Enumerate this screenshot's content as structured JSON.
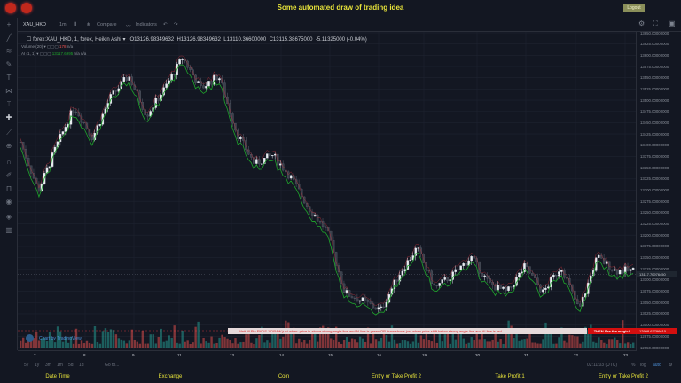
{
  "header": {
    "title": "Some automated draw of trading idea",
    "logout_label": "Logout",
    "alert_icons": [
      "alarm-icon",
      "alarm-icon"
    ]
  },
  "toolbar": {
    "symbol": "XAU_HKD",
    "interval": "1m",
    "compare": "Compare",
    "indicators": "Indicators"
  },
  "legend": {
    "main": "forex:XAU_HKD, 1, forex, Heikin Ashi",
    "open": "O13126.98349632",
    "high": "H13126.98349632",
    "low": "L13110.36600000",
    "close": "C13115.38675000",
    "change": "-5.11325000 (-0.04%)",
    "volume": "Volume (20)",
    "volume_val": "178",
    "volume_na": "n/a",
    "ai": "AI (1, 1)",
    "ai_val": "13117.6995",
    "ai_na1": "n/a",
    "ai_na2": "n/a"
  },
  "chart_data": {
    "type": "candlestick",
    "symbol": "XAU_HKD",
    "style": "Heikin Ashi",
    "y_ticks": [
      13650,
      13625,
      13600,
      13575,
      13550,
      13525,
      13500,
      13475,
      13450,
      13425,
      13400,
      13375,
      13350,
      13325,
      13300,
      13275,
      13250,
      13225,
      13200,
      13175,
      13150,
      13125,
      13100,
      13075,
      13050,
      13025,
      13000,
      12975,
      12950
    ],
    "ylim": [
      12945,
      13660
    ],
    "x_ticks": [
      "7",
      "8",
      "9",
      "11",
      "13",
      "14",
      "15",
      "16",
      "19",
      "20",
      "21",
      "22",
      "23"
    ],
    "close_path": [
      13407,
      13299,
      13398,
      13486,
      13417,
      13506,
      13555,
      13467,
      13526,
      13595,
      13526,
      13555,
      13427,
      13358,
      13378,
      13329,
      13260,
      13210,
      13072,
      13053,
      13033,
      13112,
      13171,
      13082,
      13112,
      13151,
      13092,
      13072,
      13131,
      13072,
      13131,
      13033,
      13151,
      13121,
      13121
    ],
    "current_price": "13117.70976450",
    "signal_price": "12998.67796610",
    "colors": {
      "up": "#26a69a",
      "down": "#ef5350",
      "ai_line": "#1fa52b",
      "upper_line": "#c8323c"
    }
  },
  "annotation": {
    "banner": "Wait till Pip ENDS  1   DRAW just when:  price is above strong angle line and AI line is green          OR          draw shorts just when price shift below strong angle line and AI line is red",
    "magic": "THEN See the magic!!"
  },
  "price_axis_format": "00000000",
  "branding": "Chart by TradingView",
  "range": {
    "buttons": [
      "5y",
      "1y",
      "3m",
      "1m",
      "5d",
      "1d"
    ],
    "goto": "Go to...",
    "time": "02:11:03 (UTC)",
    "percent": "%",
    "log": "log",
    "auto": "auto"
  },
  "footer": {
    "labels": [
      "Date Time",
      "Exchange",
      "Coin",
      "Entry or Take Profit 2",
      "Take Profit 1",
      "Entry or Take Profit 2"
    ]
  }
}
